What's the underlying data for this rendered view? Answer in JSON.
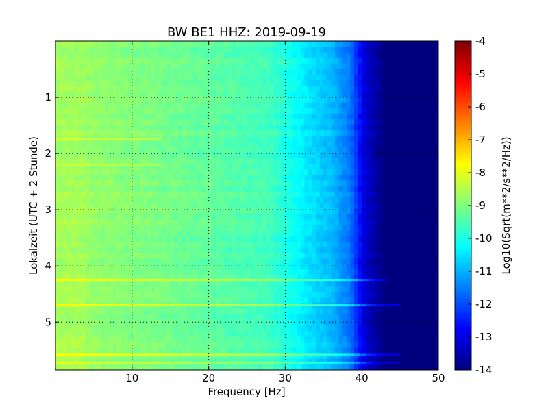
{
  "chart_data": {
    "type": "heatmap",
    "title": "BW BE1 HHZ: 2019-09-19",
    "xlabel": "Frequency [Hz]",
    "ylabel": "Lokalzeit (UTC + 2 Stunde)",
    "xlim": [
      0,
      50
    ],
    "ylim": [
      5.85,
      0.0
    ],
    "x_ticks": [
      "10",
      "20",
      "30",
      "40",
      "50"
    ],
    "y_ticks": [
      "1",
      "2",
      "3",
      "4",
      "5"
    ],
    "x_tick_values": [
      10,
      20,
      30,
      40,
      50
    ],
    "y_tick_values": [
      1,
      2,
      3,
      4,
      5
    ],
    "grid": true,
    "colormap": "jet",
    "colorbar": {
      "label": "Log10(Sqrt(m**2/s**2/Hz))",
      "range": [
        -14,
        -4
      ],
      "ticks": [
        "-4",
        "-5",
        "-6",
        "-7",
        "-8",
        "-9",
        "-10",
        "-11",
        "-12",
        "-13",
        "-14"
      ],
      "tick_values": [
        -4,
        -5,
        -6,
        -7,
        -8,
        -9,
        -10,
        -11,
        -12,
        -13,
        -14
      ]
    },
    "spectrum_profile": {
      "frequency_hz": [
        0,
        3,
        8,
        12,
        20,
        28,
        33,
        36,
        38.5,
        40.5,
        43,
        50
      ],
      "level": [
        -8.7,
        -8.7,
        -8.9,
        -9.0,
        -9.3,
        -9.6,
        -10.5,
        -10.9,
        -11.6,
        -13.2,
        -14,
        -14
      ]
    },
    "bright_bands": [
      {
        "time": 1.75,
        "f_end": 14,
        "delta": 0.6
      },
      {
        "time": 2.2,
        "f_end": 14,
        "delta": 0.4
      },
      {
        "time": 4.25,
        "f_end": 43,
        "delta": 0.9
      },
      {
        "time": 4.7,
        "f_end": 45,
        "delta": 1.0
      },
      {
        "time": 5.58,
        "f_end": 45,
        "delta": 0.9
      },
      {
        "time": 5.72,
        "f_end": 45,
        "delta": 0.7
      }
    ]
  },
  "colors": {
    "jet": [
      "#00007f",
      "#0000ff",
      "#007fff",
      "#00ffff",
      "#7fff7f",
      "#ffff00",
      "#ff7f00",
      "#ff0000",
      "#7f0000"
    ]
  }
}
